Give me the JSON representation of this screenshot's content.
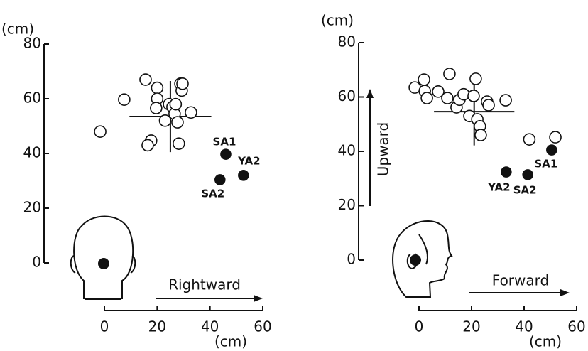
{
  "chart_data": [
    {
      "type": "scatter",
      "ylabel": "(cm)",
      "xlabel": "(cm)",
      "direction_label": "Rightward",
      "xlim": [
        0,
        60
      ],
      "xticks": [
        0,
        20,
        40,
        60
      ],
      "ylim": [
        0,
        80
      ],
      "yticks": [
        0,
        20,
        40,
        60,
        80
      ],
      "series": [
        {
          "marker": "open",
          "x": [
            -1.6,
            7.5,
            15.6,
            20,
            20,
            19.6,
            17.7,
            16.4,
            23,
            24.5,
            25.8,
            26.6,
            27,
            27.7,
            28.2,
            28.8,
            29.3,
            29.6,
            32.8
          ],
          "y": [
            48,
            59.7,
            67,
            64,
            60,
            56.6,
            44.7,
            43,
            52,
            58,
            57,
            54.5,
            58,
            51.4,
            43.6,
            65.5,
            63,
            65.5,
            55
          ]
        },
        {
          "marker": "filled",
          "labels": [
            "SA1",
            "YA2",
            "SA2"
          ],
          "x": [
            46,
            52.7,
            43.8
          ],
          "y": [
            39.7,
            32,
            30.4
          ]
        }
      ],
      "mean": {
        "x": 25,
        "y": 53.5,
        "xsd": 15.5,
        "ysd": 13
      }
    },
    {
      "type": "scatter",
      "ylabel": "(cm)",
      "xlabel": "(cm)",
      "direction_label": "Forward",
      "vertical_label": "Upward",
      "xlim": [
        0,
        60
      ],
      "xticks": [
        0,
        20,
        40,
        60
      ],
      "ylim": [
        0,
        80
      ],
      "yticks": [
        0,
        20,
        40,
        60,
        80
      ],
      "series": [
        {
          "marker": "open",
          "x": [
            -1.6,
            1.9,
            2.2,
            3,
            7.3,
            11.6,
            10.8,
            14.3,
            15.4,
            17,
            19.2,
            21.6,
            20.8,
            22.2,
            23.2,
            23.5,
            25.9,
            26.5,
            33,
            42,
            51.9
          ],
          "y": [
            63.5,
            66.4,
            62.2,
            59.6,
            62,
            68.5,
            59.6,
            56.2,
            59,
            61,
            53,
            66.7,
            60.4,
            51.8,
            49.2,
            46,
            58.3,
            57,
            58.8,
            44.4,
            45.2
          ]
        },
        {
          "marker": "filled",
          "labels": [
            "SA1",
            "YA2",
            "SA2"
          ],
          "x": [
            50.5,
            33.2,
            41.4
          ],
          "y": [
            40.5,
            32.4,
            31.4
          ]
        }
      ],
      "mean": {
        "x": 21,
        "y": 54.6,
        "xsd": 15.3,
        "ysd": 12.4
      }
    }
  ]
}
